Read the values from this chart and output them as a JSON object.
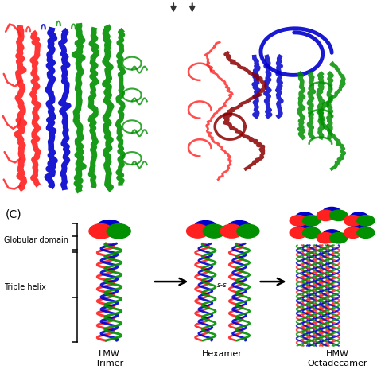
{
  "colors": {
    "red": "#FF2020",
    "green": "#009000",
    "blue": "#0000CC",
    "dark_red": "#8B0000",
    "black": "#000000",
    "white": "#FFFFFF"
  },
  "panel_c_label": "(C)",
  "globular_domain_label": "Globular domain",
  "triple_helix_label": "Triple helix",
  "lmw_label": "LMW\nTrimer",
  "hexamer_label": "Hexamer",
  "hmw_label": "HMW\nOctadecamer",
  "ss_label": "s-s",
  "background_color": "#FFFFFF",
  "top_image_placeholder": true
}
